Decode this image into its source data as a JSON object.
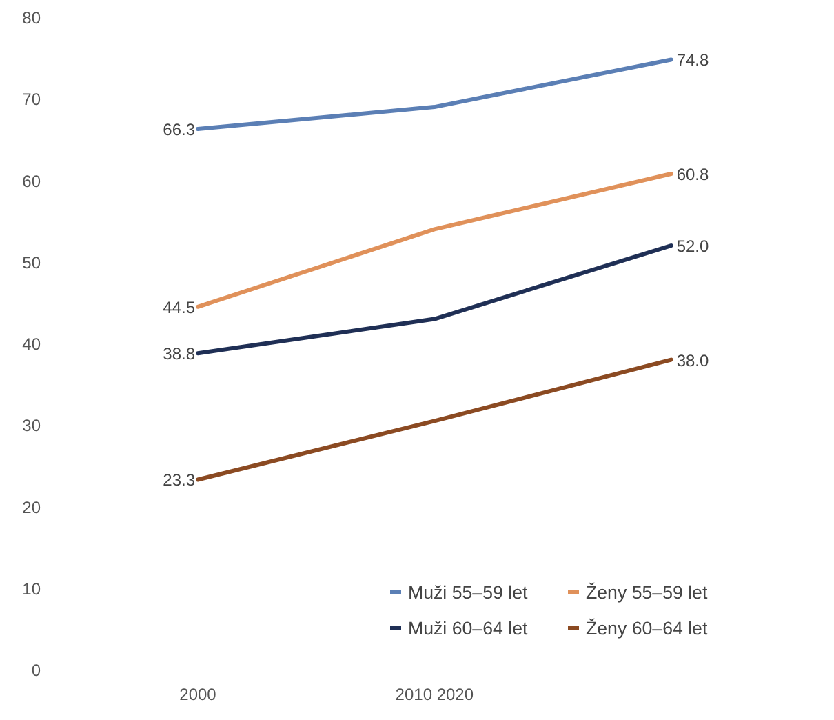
{
  "chart_data": {
    "type": "line",
    "categories": [
      "2000",
      "2010 2020",
      null
    ],
    "ylim": [
      0,
      80
    ],
    "yticks": [
      0,
      10,
      20,
      30,
      40,
      50,
      60,
      70,
      80
    ],
    "legend": "bottom",
    "series": [
      {
        "name": "Muži 55–59 let",
        "color": "#5b7fb5",
        "values": [
          66.3,
          69,
          74.8
        ],
        "value_labels": [
          "66.3",
          null,
          "74.8"
        ]
      },
      {
        "name": "Muži 60–64 let",
        "color": "#1f2f55",
        "values": [
          38.8,
          43,
          52.0
        ],
        "value_labels": [
          "38.8",
          null,
          "52.0"
        ]
      },
      {
        "name": "Ženy 55–59 let",
        "color": "#e0915a",
        "values": [
          44.5,
          54,
          60.8
        ],
        "value_labels": [
          "44.5",
          null,
          "60.8"
        ]
      },
      {
        "name": "Ženy 60–64 let",
        "color": "#8b4a22",
        "values": [
          23.3,
          30.5,
          38.0
        ],
        "value_labels": [
          "23.3",
          null,
          "38.0"
        ]
      }
    ]
  }
}
